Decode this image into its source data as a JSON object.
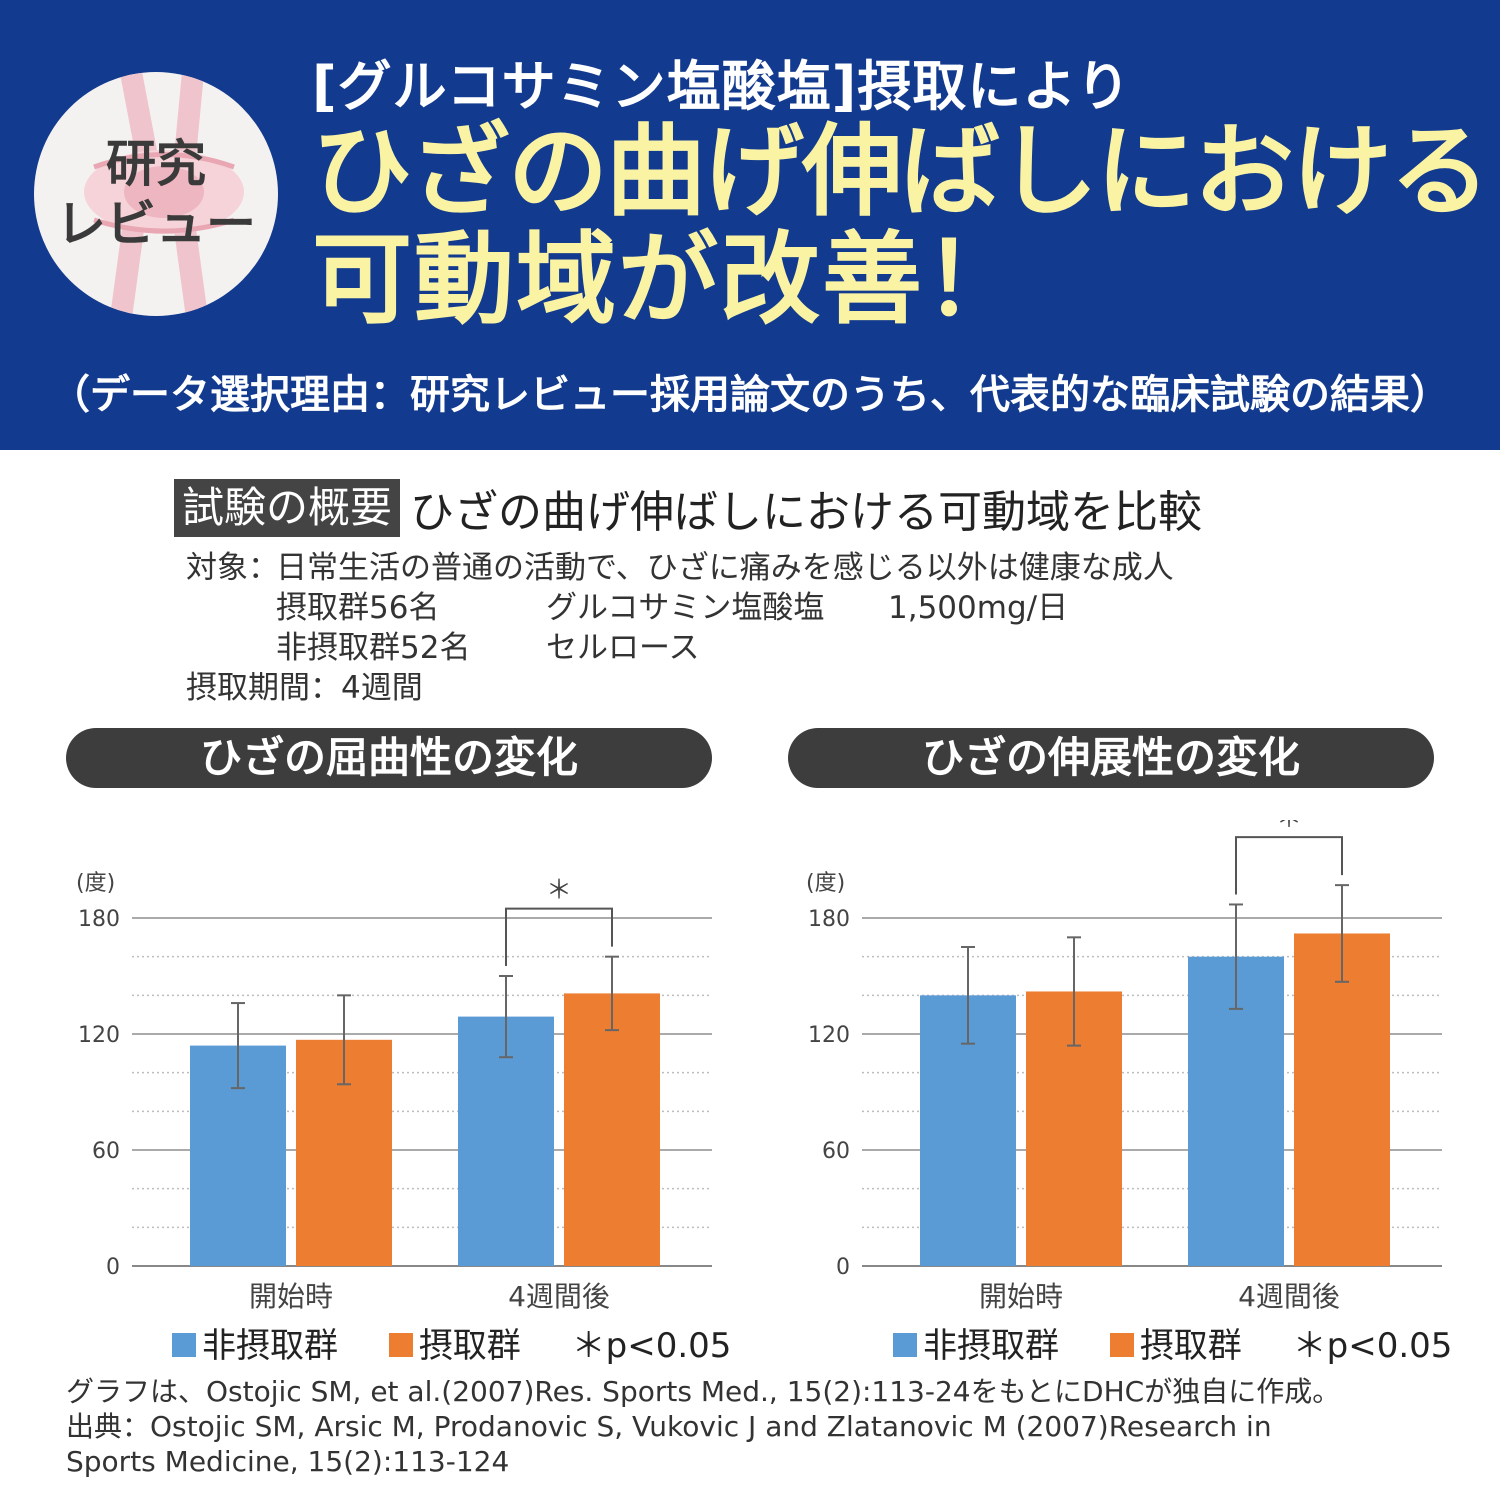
{
  "header": {
    "badge_line1": "研究",
    "badge_line2": "レビュー",
    "subtitle": "[グルコサミン塩酸塩]摂取により",
    "headline_line1": "ひざの曲げ伸ばしにおける",
    "headline_line2": "可動域が改善！",
    "reason": "（データ選択理由：研究レビュー採用論文のうち、代表的な臨床試験の結果）",
    "colors": {
      "banner": "#123a8e",
      "headline": "#fbf3a4"
    }
  },
  "overview": {
    "tag": "試験の概要",
    "title": "ひざの曲げ伸ばしにおける可動域を比較",
    "subject_label": "対象：",
    "subject_text": "日常生活の普通の活動で、ひざに痛みを感じる以外は健康な成人",
    "group1_name": "摂取群56名",
    "group1_detail": "グルコサミン塩酸塩",
    "group1_dose": "1,500mg/日",
    "group2_name": "非摂取群52名",
    "group2_detail": "セルロース",
    "period_label": "摂取期間：",
    "period_value": "4週間"
  },
  "charts": {
    "flexion_title": "ひざの屈曲性の変化",
    "extension_title": "ひざの伸展性の変化"
  },
  "legend": {
    "non_intake": "非摂取群",
    "intake": "摂取群",
    "significance": "＊p<0.05"
  },
  "source": {
    "line1": "グラフは、Ostojic SM, et al.(2007)Res. Sports Med., 15(2):113-24をもとにDHCが独自に作成。",
    "line2": "出典：Ostojic SM, Arsic M, Prodanovic S, Vukovic J and Zlatanovic M  (2007)Research in",
    "line3": "Sports Medicine, 15(2):113-124"
  },
  "chart_data": [
    {
      "type": "bar",
      "title": "ひざの屈曲性の変化",
      "ylabel": "(度)",
      "ylim": [
        0,
        180
      ],
      "yticks": [
        0,
        60,
        120,
        180
      ],
      "categories": [
        "開始時",
        "4週間後"
      ],
      "grid": true,
      "series": [
        {
          "name": "非摂取群",
          "color": "#5b9bd5",
          "values": [
            114,
            129
          ],
          "errors": [
            22,
            21
          ]
        },
        {
          "name": "摂取群",
          "color": "#ed7d31",
          "values": [
            117,
            141
          ],
          "errors": [
            23,
            19
          ]
        }
      ],
      "significance": {
        "category_index": 1,
        "label": "＊"
      }
    },
    {
      "type": "bar",
      "title": "ひざの伸展性の変化",
      "ylabel": "(度)",
      "ylim": [
        0,
        180
      ],
      "yticks": [
        0,
        60,
        120,
        180
      ],
      "categories": [
        "開始時",
        "4週間後"
      ],
      "grid": true,
      "series": [
        {
          "name": "非摂取群",
          "color": "#5b9bd5",
          "values": [
            140,
            160
          ],
          "errors": [
            25,
            27
          ]
        },
        {
          "name": "摂取群",
          "color": "#ed7d31",
          "values": [
            142,
            172
          ],
          "errors": [
            28,
            25
          ]
        }
      ],
      "significance": {
        "category_index": 1,
        "label": "＊"
      }
    }
  ]
}
